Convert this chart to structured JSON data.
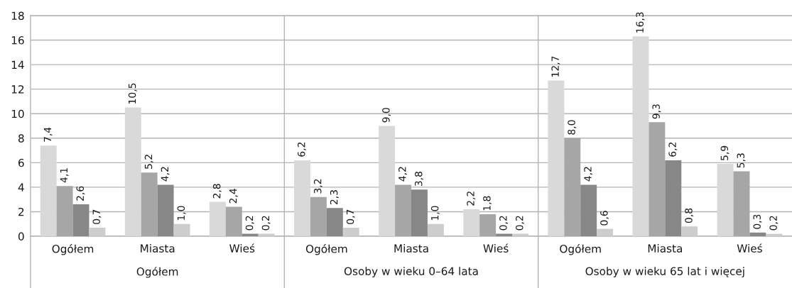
{
  "chart_data": [
    {
      "type": "bar",
      "xlabel": "Ogółem",
      "categories": [
        "Ogółem",
        "Miasta",
        "Wieś"
      ],
      "ylim": [
        0,
        18
      ],
      "yticks": [
        0,
        2,
        4,
        6,
        8,
        10,
        12,
        14,
        16,
        18
      ],
      "grid": "y",
      "series": [
        {
          "color": "#d9d9d9",
          "values": [
            7.4,
            10.5,
            2.8
          ],
          "value_labels": [
            "7,4",
            "10,5",
            "2,8"
          ]
        },
        {
          "color": "#a6a6a6",
          "values": [
            4.1,
            5.2,
            2.4
          ],
          "value_labels": [
            "4,1",
            "5,2",
            "2,4"
          ]
        },
        {
          "color": "#878787",
          "values": [
            2.6,
            4.2,
            0.2
          ],
          "value_labels": [
            "2,6",
            "4,2",
            "0,2"
          ]
        },
        {
          "color": "#cdcdcd",
          "values": [
            0.7,
            1.0,
            0.2
          ],
          "value_labels": [
            "0,7",
            "1,0",
            "0,2"
          ]
        }
      ]
    },
    {
      "type": "bar",
      "xlabel": "Osoby w wieku 0–64 lata",
      "categories": [
        "Ogółem",
        "Miasta",
        "Wieś"
      ],
      "ylim": [
        0,
        18
      ],
      "yticks": [
        0,
        2,
        4,
        6,
        8,
        10,
        12,
        14,
        16,
        18
      ],
      "grid": "y",
      "tick_labels": "x",
      "series": [
        {
          "color": "#d9d9d9",
          "values": [
            6.2,
            9.0,
            2.2
          ],
          "value_labels": [
            "6,2",
            "9,0",
            "2,2"
          ]
        },
        {
          "color": "#a6a6a6",
          "values": [
            3.2,
            4.2,
            1.8
          ],
          "value_labels": [
            "3,2",
            "4,2",
            "1,8"
          ]
        },
        {
          "color": "#878787",
          "values": [
            2.3,
            3.8,
            0.2
          ],
          "value_labels": [
            "2,3",
            "3,8",
            "0,2"
          ]
        },
        {
          "color": "#cdcdcd",
          "values": [
            0.7,
            1.0,
            0.2
          ],
          "value_labels": [
            "0,7",
            "1,0",
            "0,2"
          ]
        }
      ]
    },
    {
      "type": "bar",
      "xlabel": "Osoby w wieku 65 lat i więcej",
      "categories": [
        "Ogółem",
        "Miasta",
        "Wieś"
      ],
      "ylim": [
        0,
        18
      ],
      "yticks": [
        0,
        2,
        4,
        6,
        8,
        10,
        12,
        14,
        16,
        18
      ],
      "grid": "y",
      "tick_labels": "x",
      "series": [
        {
          "color": "#d9d9d9",
          "values": [
            12.7,
            16.3,
            5.9
          ],
          "value_labels": [
            "12,7",
            "16,3",
            "5,9"
          ]
        },
        {
          "color": "#a6a6a6",
          "values": [
            8.0,
            9.3,
            5.3
          ],
          "value_labels": [
            "8,0",
            "9,3",
            "5,3"
          ]
        },
        {
          "color": "#878787",
          "values": [
            4.2,
            6.2,
            0.3
          ],
          "value_labels": [
            "4,2",
            "6,2",
            "0,3"
          ]
        },
        {
          "color": "#cdcdcd",
          "values": [
            0.6,
            0.8,
            0.2
          ],
          "value_labels": [
            "0,6",
            "0,8",
            "0,2"
          ]
        }
      ]
    }
  ]
}
